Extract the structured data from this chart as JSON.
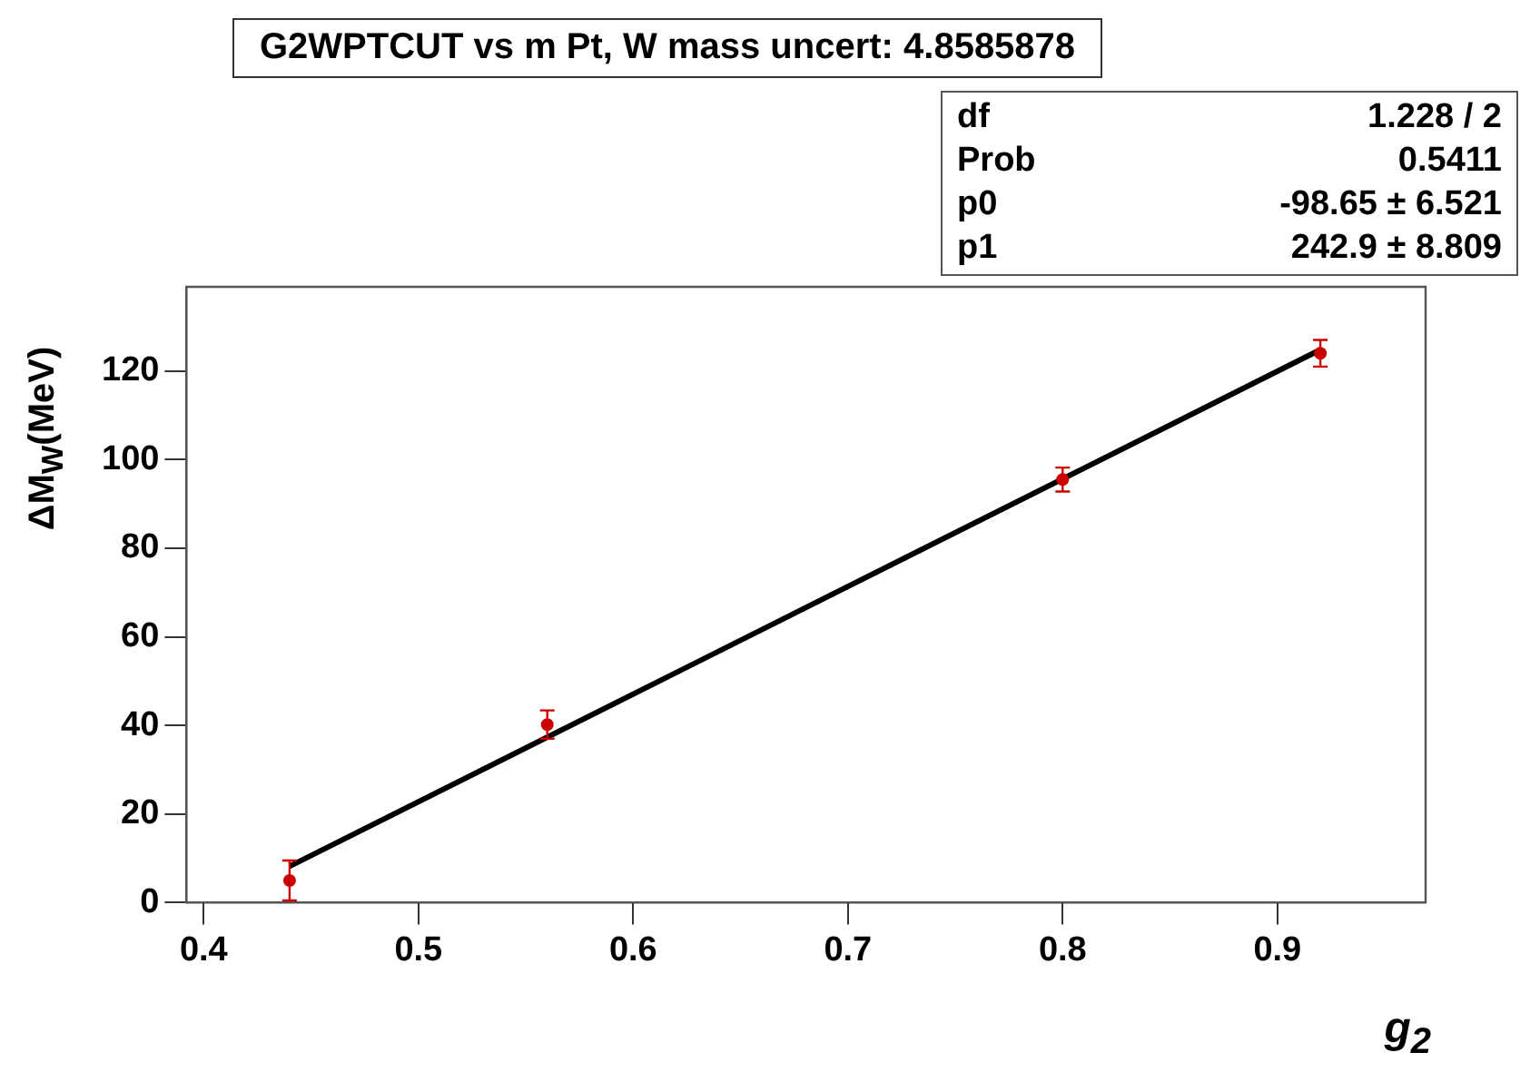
{
  "chart_data": {
    "type": "scatter",
    "title": "G2WPTCUT vs m Pt, W mass uncert: 4.8585878",
    "xlabel": "g$_{2}$",
    "ylabel": "ΔM$_{W}$(MeV)",
    "annotations": [
      "df",
      "1.228 / 2",
      "Prob",
      "0.5411",
      "p0",
      "-98.65 ± 6.521",
      "p1",
      "242.9 ± 8.809"
    ],
    "xlim": [
      0.392,
      0.969
    ],
    "xticks": [
      0.4,
      0.5,
      0.6,
      0.7,
      0.8,
      0.9
    ],
    "ylim": [
      0,
      139
    ],
    "yticks": [
      0,
      20,
      40,
      60,
      80,
      100,
      120
    ],
    "grid": false,
    "series": [
      {
        "color": "#cc0000",
        "marker": "circle",
        "x": [
          0.44,
          0.56,
          0.8,
          0.92
        ],
        "values": [
          5,
          40.2,
          95.5,
          124
        ],
        "errors": [
          4.5,
          3.2,
          2.7,
          3
        ]
      },
      {
        "type": "line",
        "color": "#000000",
        "x": [
          0.44,
          0.92
        ],
        "values": [
          8.2,
          124.8
        ],
        "line_style": "solid",
        "marker": "none"
      }
    ]
  }
}
